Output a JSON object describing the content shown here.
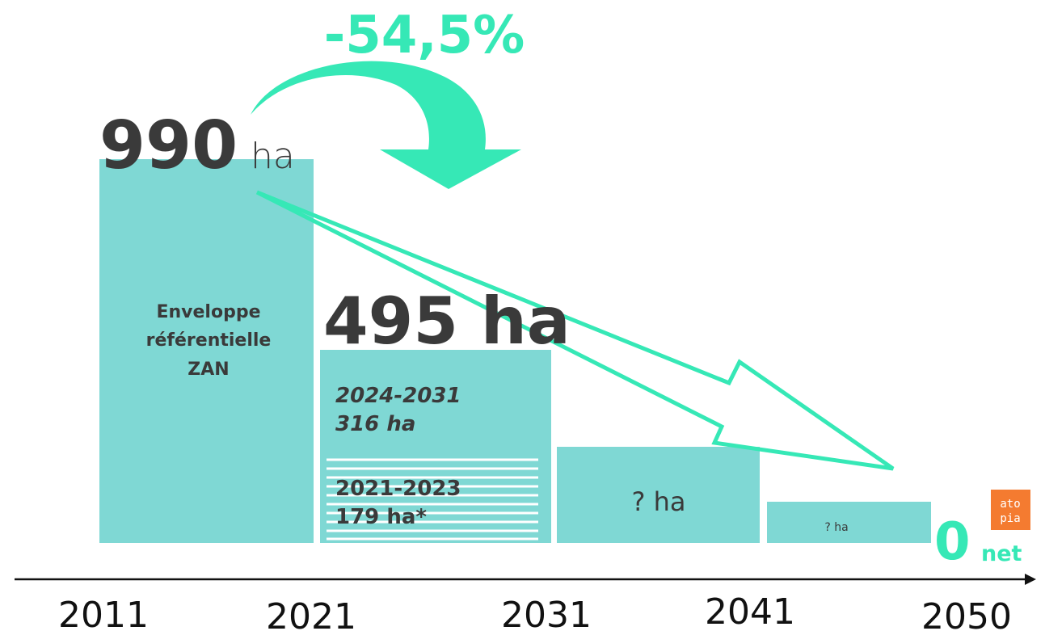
{
  "reduction": "-54,5%",
  "bars": [
    {
      "value": "990",
      "unit": "ha",
      "label": [
        "Enveloppe",
        "référentielle",
        "ZAN"
      ]
    },
    {
      "value": "495 ha",
      "segments": [
        {
          "period": "2024-2031",
          "amount": "316 ha"
        },
        {
          "period": "2021-2023",
          "amount": "179 ha*"
        }
      ]
    },
    {
      "value": "? ha"
    },
    {
      "value": "? ha"
    }
  ],
  "target": {
    "value": "0",
    "unit": "net"
  },
  "logo": [
    "ato",
    "pia"
  ],
  "axis": [
    "2011",
    "2021",
    "2031",
    "2041",
    "2050"
  ]
}
